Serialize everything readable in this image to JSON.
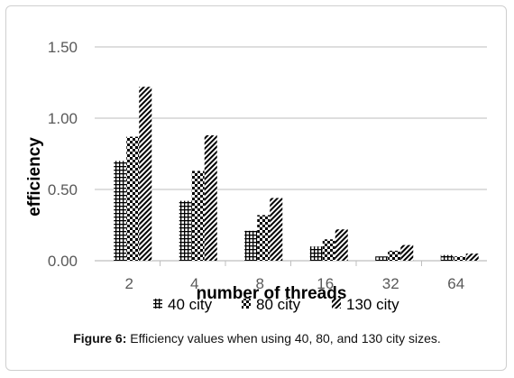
{
  "chart_data": {
    "type": "bar",
    "xlabel": "number of threads",
    "ylabel": "efficiency",
    "categories": [
      "2",
      "4",
      "8",
      "16",
      "32",
      "64"
    ],
    "ylim": [
      0,
      1.5
    ],
    "yticks": [
      "0.00",
      "0.50",
      "1.00",
      "1.50"
    ],
    "grid": true,
    "legend_position": "bottom",
    "series": [
      {
        "name": "40 city",
        "values": [
          0.7,
          0.42,
          0.21,
          0.1,
          0.03,
          0.04
        ],
        "pattern": "grid"
      },
      {
        "name": "80 city",
        "values": [
          0.87,
          0.63,
          0.32,
          0.15,
          0.07,
          0.03
        ],
        "pattern": "checker"
      },
      {
        "name": "130 city",
        "values": [
          1.22,
          0.88,
          0.44,
          0.22,
          0.11,
          0.05
        ],
        "pattern": "diagonal"
      }
    ]
  },
  "caption": {
    "label": "Figure 6:",
    "text": " Efficiency values when using 40, 80, and 130 city sizes."
  }
}
